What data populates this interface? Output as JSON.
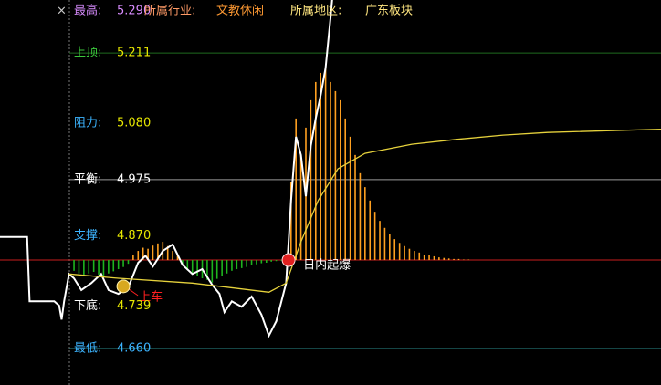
{
  "header": {
    "close": "×",
    "industry_label": "所属行业:",
    "industry": "文教休闲",
    "region_label": "所属地区:",
    "region": "广东板块"
  },
  "chart_data": {
    "type": "line",
    "xlim": [
      -28,
      240
    ],
    "ylim": [
      4.592,
      5.31
    ],
    "levels": [
      {
        "name": "最高:",
        "price": {
          "value": 5.29,
          "label": "5.290"
        },
        "name_color": "#d98cff",
        "value_color": "#d98cff"
      },
      {
        "name": "上顶:",
        "price": 5.211,
        "name_color": "#3cc83c",
        "value_color": "#e6e600",
        "line_color": "#1f6b1f"
      },
      {
        "name": "阻力:",
        "price": {
          "value": 5.08,
          "label": "5.080"
        },
        "name_color": "#3cb4ff",
        "value_color": "#e6e600"
      },
      {
        "name": "平衡:",
        "price": 4.975,
        "name_color": "#ffffff",
        "value_color": "#ffffff",
        "line_color": "#9a9a9a"
      },
      {
        "name": "支撑:",
        "price": {
          "value": 4.87,
          "label": "4.870"
        },
        "name_color": "#3cb4ff",
        "value_color": "#e6e600"
      },
      {
        "name": "下底:",
        "price": 4.739,
        "name_color": "#ffffff",
        "value_color": "#e6e600"
      },
      {
        "name": "最低:",
        "price": {
          "value": 4.66,
          "label": "4.660"
        },
        "name_color": "#3cb4ff",
        "value_color": "#3cb4ff",
        "line_color": "#2a8c8c"
      }
    ],
    "series": [
      {
        "color": "#ffffff",
        "x": [
          -28,
          -17,
          -16,
          -6,
          -4,
          -3,
          -2,
          0,
          2,
          5,
          9,
          13,
          16,
          20,
          24,
          28,
          31,
          34,
          38,
          42,
          46,
          50,
          54,
          58,
          61,
          63,
          66,
          70,
          74,
          78,
          81,
          84,
          88,
          90,
          92,
          94,
          96,
          98,
          100,
          102,
          104,
          106,
          107
        ],
        "values": [
          4.868,
          4.868,
          4.748,
          4.748,
          4.74,
          4.714,
          4.748,
          4.799,
          4.791,
          4.769,
          4.782,
          4.799,
          4.769,
          4.762,
          4.774,
          4.82,
          4.833,
          4.813,
          4.842,
          4.854,
          4.816,
          4.799,
          4.808,
          4.779,
          4.762,
          4.728,
          4.748,
          4.738,
          4.757,
          4.723,
          4.684,
          4.711,
          4.782,
          4.936,
          5.055,
          5.021,
          4.944,
          5.038,
          5.089,
          5.132,
          5.183,
          5.276,
          5.327
        ]
      },
      {
        "color": "#e6d23c",
        "x": [
          0,
          20,
          50,
          81,
          88,
          94,
          101,
          109,
          120,
          139,
          157,
          176,
          194,
          240
        ],
        "values": [
          4.799,
          4.791,
          4.782,
          4.765,
          4.782,
          4.859,
          4.936,
          4.995,
          5.024,
          5.041,
          5.05,
          5.058,
          5.063,
          5.069
        ]
      }
    ],
    "bars": {
      "baseline": 4.825,
      "baseline_color": "#c81e1e",
      "up_color": "#ffa020",
      "down_color": "#1eb41e",
      "x": [
        2,
        4,
        6,
        8,
        10,
        12,
        14,
        16,
        18,
        20,
        22,
        24,
        26,
        28,
        30,
        32,
        34,
        36,
        38,
        40,
        42,
        44,
        46,
        48,
        50,
        52,
        54,
        56,
        58,
        60,
        62,
        64,
        66,
        68,
        70,
        72,
        74,
        76,
        78,
        80,
        82,
        84,
        86,
        88,
        90,
        92,
        94,
        96,
        98,
        100,
        102,
        104,
        106,
        108,
        110,
        112,
        114,
        116,
        118,
        120,
        122,
        124,
        126,
        128,
        130,
        132,
        134,
        136,
        138,
        140,
        142,
        144,
        146,
        148,
        150,
        152,
        154,
        156,
        158,
        160,
        162
      ],
      "values": [
        4.805,
        4.8,
        4.796,
        4.8,
        4.803,
        4.798,
        4.795,
        4.8,
        4.804,
        4.808,
        4.812,
        4.818,
        4.834,
        4.842,
        4.848,
        4.846,
        4.852,
        4.856,
        4.859,
        4.851,
        4.842,
        4.834,
        4.815,
        4.806,
        4.8,
        4.795,
        4.791,
        4.788,
        4.783,
        4.79,
        4.796,
        4.8,
        4.805,
        4.808,
        4.81,
        4.812,
        4.815,
        4.817,
        4.819,
        4.82,
        4.822,
        4.823,
        4.824,
        4.834,
        4.97,
        5.089,
        5.021,
        5.072,
        5.123,
        5.157,
        5.174,
        5.182,
        5.157,
        5.14,
        5.123,
        5.089,
        5.055,
        5.021,
        4.987,
        4.961,
        4.936,
        4.915,
        4.898,
        4.885,
        4.874,
        4.864,
        4.857,
        4.851,
        4.846,
        4.842,
        4.839,
        4.835,
        4.834,
        4.832,
        4.83,
        4.829,
        4.828,
        4.827,
        4.827,
        4.826,
        4.826
      ]
    },
    "annotations": [
      {
        "text": "日内起爆",
        "x": 89,
        "y": 4.825,
        "color": "#ffffff"
      },
      {
        "text": "上车",
        "x": 22,
        "y": 4.776,
        "color": "#ff2020"
      }
    ]
  }
}
